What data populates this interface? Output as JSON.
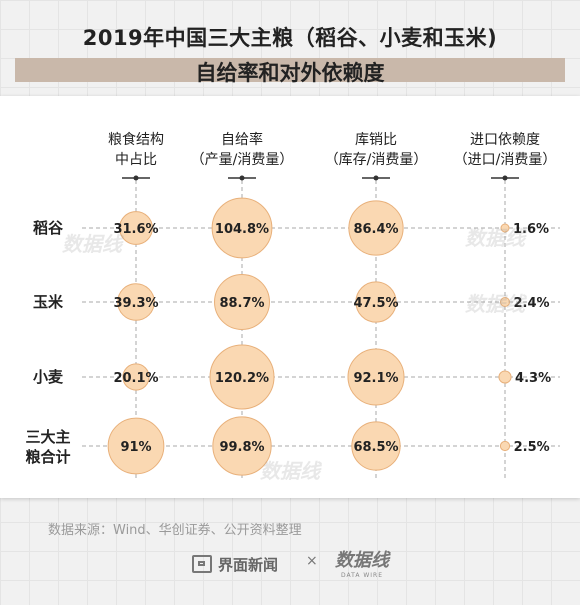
{
  "title": "2019年中国三大主粮（稻谷、小麦和玉米)",
  "subtitle": "自给率和对外依赖度",
  "source": "数据来源：Wind、华创证券、公开资料整理",
  "footer": {
    "brand_a": "界面新闻",
    "times": "×",
    "brand_b": "数据线",
    "brand_b_en": "DATA WIRE"
  },
  "watermark": "数据线",
  "chart_data": {
    "type": "bubble",
    "title": "2019年中国三大主粮（稻谷、小麦和玉米) 自给率和对外依赖度",
    "columns": [
      {
        "line1": "粮食结构",
        "line2": "中占比"
      },
      {
        "line1": "自给率",
        "line2": "（产量/消费量）"
      },
      {
        "line1": "库销比",
        "line2": "（库存/消费量）"
      },
      {
        "line1": "进口依赖度",
        "line2": "（进口/消费量）"
      }
    ],
    "rows": [
      {
        "label": [
          "稻谷"
        ],
        "values": [
          31.6,
          104.8,
          86.4,
          1.6
        ],
        "labels": [
          "31.6%",
          "104.8%",
          "86.4%",
          "1.6%"
        ]
      },
      {
        "label": [
          "玉米"
        ],
        "values": [
          39.3,
          88.7,
          47.5,
          2.4
        ],
        "labels": [
          "39.3%",
          "88.7%",
          "47.5%",
          "2.4%"
        ]
      },
      {
        "label": [
          "小麦"
        ],
        "values": [
          20.1,
          120.2,
          92.1,
          4.3
        ],
        "labels": [
          "20.1%",
          "120.2%",
          "92.1%",
          "4.3%"
        ]
      },
      {
        "label": [
          "三大主",
          "粮合计"
        ],
        "values": [
          91,
          99.8,
          68.5,
          2.5
        ],
        "labels": [
          "91%",
          "99.8%",
          "68.5%",
          "2.5%"
        ]
      }
    ],
    "colors": {
      "bubble_fill": "#fad8b2",
      "bubble_stroke": "#e8b07a",
      "grid": "#aaaaaa"
    }
  }
}
